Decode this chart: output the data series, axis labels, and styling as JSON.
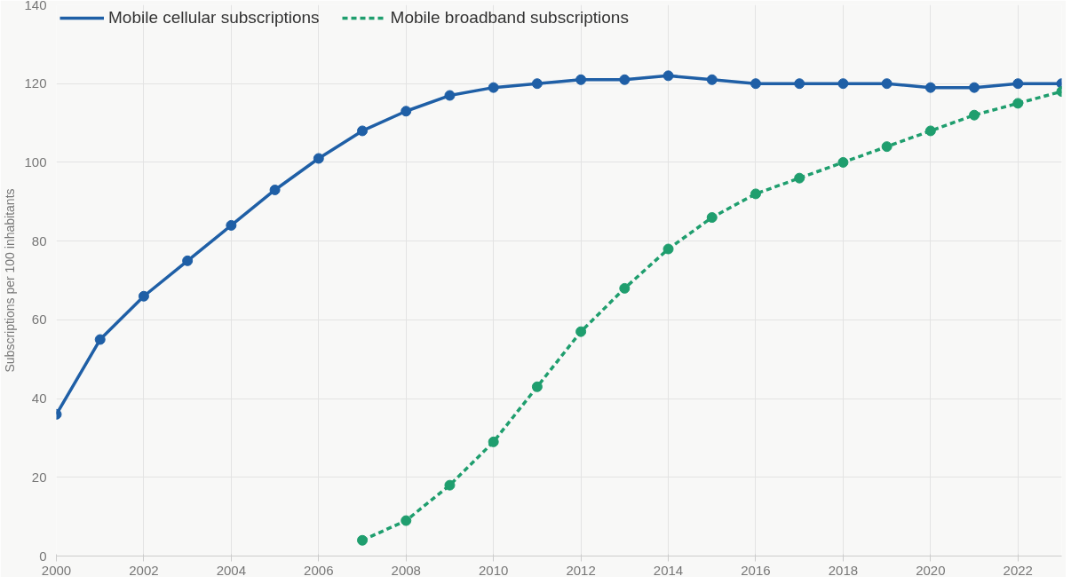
{
  "chart_data": {
    "type": "line",
    "ylabel": "Subscriptions per 100 inhabitants",
    "x": [
      2000,
      2001,
      2002,
      2003,
      2004,
      2005,
      2006,
      2007,
      2008,
      2009,
      2010,
      2011,
      2012,
      2013,
      2014,
      2015,
      2016,
      2017,
      2018,
      2019,
      2020,
      2021,
      2022,
      2023
    ],
    "series": [
      {
        "name": "Mobile cellular subscriptions",
        "color": "#1f5fa6",
        "line_style": "solid",
        "values": [
          36,
          55,
          66,
          75,
          84,
          93,
          101,
          108,
          113,
          117,
          119,
          120,
          121,
          121,
          122,
          121,
          120,
          120,
          120,
          120,
          119,
          119,
          120,
          120
        ]
      },
      {
        "name": "Mobile broadband subscriptions",
        "color": "#1f9e6e",
        "line_style": "dashed",
        "values": [
          null,
          null,
          null,
          null,
          null,
          null,
          null,
          4,
          9,
          18,
          29,
          43,
          57,
          68,
          78,
          86,
          92,
          96,
          100,
          104,
          108,
          112,
          115,
          118
        ]
      }
    ],
    "xlim": [
      2000,
      2023
    ],
    "xticks": [
      2000,
      2002,
      2004,
      2006,
      2008,
      2010,
      2012,
      2014,
      2016,
      2018,
      2020,
      2022
    ],
    "ylim": [
      0,
      140
    ],
    "yticks": [
      0,
      20,
      40,
      60,
      80,
      100,
      120,
      140
    ],
    "grid": true,
    "legend": "top left",
    "marker": "circle"
  }
}
